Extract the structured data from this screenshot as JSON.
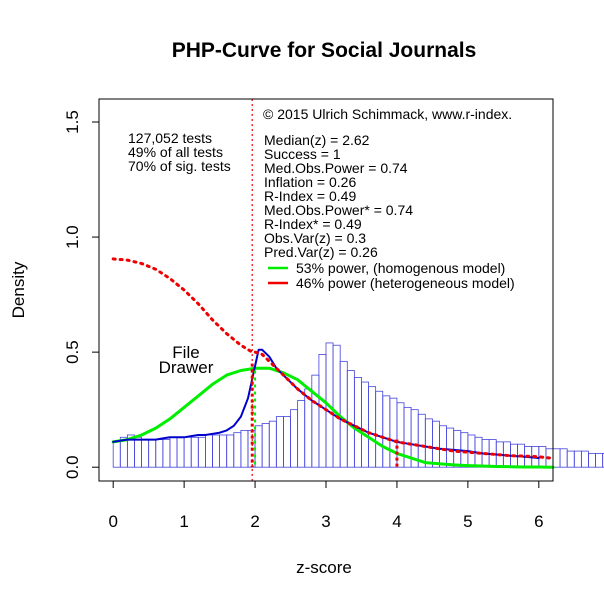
{
  "chart_data": {
    "type": "histogram-with-curves",
    "title": "PHP-Curve for Social Journals",
    "xlabel": "z-score",
    "ylabel": "Density",
    "xlim": [
      -0.2,
      6.2
    ],
    "ylim": [
      -0.06,
      1.6
    ],
    "x_ticks": [
      0,
      1,
      2,
      3,
      4,
      5,
      6
    ],
    "y_ticks": [
      0.0,
      0.5,
      1.0,
      1.5
    ],
    "x_tick_labels": [
      "0",
      "1",
      "2",
      "3",
      "4",
      "5",
      "6"
    ],
    "y_tick_labels": [
      "0.0",
      "0.5",
      "1.0",
      "1.5"
    ],
    "copyright": "© 2015 Ulrich Schimmack, www.r-index.",
    "left_annotations": [
      "127,052 tests",
      "49% of all tests",
      "70% of sig. tests"
    ],
    "stats_annotations": [
      "Median(z) = 2.62",
      "Success = 1",
      "Med.Obs.Power = 0.74",
      "Inflation = 0.26",
      "R-Index = 0.49",
      "Med.Obs.Power* = 0.74",
      "R-Index* = 0.49",
      "Obs.Var(z) = 0.3",
      "Pred.Var(z) = 0.26"
    ],
    "file_drawer_label": [
      "File",
      "Drawer"
    ],
    "significance_threshold": 1.96,
    "power_cutoff": 4,
    "histogram": {
      "bin_width": 0.1,
      "bin_start": 0,
      "color": "#4444dd",
      "values": [
        0.11,
        0.13,
        0.14,
        0.13,
        0.12,
        0.12,
        0.12,
        0.12,
        0.13,
        0.13,
        0.13,
        0.13,
        0.13,
        0.14,
        0.14,
        0.14,
        0.14,
        0.15,
        0.16,
        0.16,
        0.18,
        0.19,
        0.2,
        0.22,
        0.22,
        0.25,
        0.29,
        0.34,
        0.4,
        0.49,
        0.54,
        0.53,
        0.46,
        0.42,
        0.39,
        0.37,
        0.35,
        0.33,
        0.31,
        0.3,
        0.28,
        0.26,
        0.25,
        0.23,
        0.21,
        0.2,
        0.18,
        0.17,
        0.16,
        0.15,
        0.14,
        0.13,
        0.12,
        0.12,
        0.11,
        0.11,
        0.1,
        0.1,
        0.09,
        0.09,
        0.09,
        0.08,
        0.08,
        0.08,
        0.07,
        0.07,
        0.07,
        0.06,
        0.06,
        0.06,
        0.05,
        0.05,
        0.05,
        0.05,
        0.04,
        0.04,
        0.04,
        0.04,
        0.03,
        0.03
      ]
    },
    "series": [
      {
        "name": "53% power, (homogenous model)",
        "color": "#00ee00",
        "style": "solid",
        "x": [
          0.0,
          0.2,
          0.4,
          0.6,
          0.8,
          1.0,
          1.2,
          1.4,
          1.6,
          1.8,
          2.0,
          2.2,
          2.4,
          2.6,
          2.8,
          3.0,
          3.2,
          3.4,
          3.6,
          3.8,
          4.0,
          4.2,
          4.4,
          4.6,
          4.8,
          5.0,
          5.2,
          5.4,
          5.6,
          5.8,
          6.0,
          6.2
        ],
        "y": [
          0.11,
          0.12,
          0.14,
          0.17,
          0.21,
          0.26,
          0.31,
          0.36,
          0.4,
          0.42,
          0.43,
          0.43,
          0.41,
          0.38,
          0.33,
          0.28,
          0.22,
          0.17,
          0.13,
          0.09,
          0.06,
          0.04,
          0.02,
          0.015,
          0.01,
          0.007,
          0.005,
          0.003,
          0.002,
          0.001,
          0.001,
          0.0
        ]
      },
      {
        "name": "46% power (heterogeneous model)",
        "color": "#ee0000",
        "style": "dotted",
        "x": [
          0.0,
          0.2,
          0.4,
          0.6,
          0.8,
          1.0,
          1.2,
          1.4,
          1.6,
          1.8,
          1.96,
          2.0,
          2.1,
          2.2,
          2.4,
          2.6,
          2.8,
          3.0,
          3.2,
          3.4,
          3.6,
          3.8,
          4.0,
          4.2,
          4.4,
          4.6,
          4.8,
          5.0,
          5.2,
          5.4,
          5.6,
          5.8,
          6.0,
          6.15
        ],
        "y": [
          0.905,
          0.9,
          0.885,
          0.86,
          0.82,
          0.77,
          0.71,
          0.64,
          0.58,
          0.53,
          0.5,
          0.5,
          0.49,
          0.46,
          0.4,
          0.34,
          0.29,
          0.25,
          0.21,
          0.18,
          0.15,
          0.13,
          0.11,
          0.1,
          0.09,
          0.08,
          0.07,
          0.065,
          0.06,
          0.055,
          0.05,
          0.048,
          0.045,
          0.04
        ]
      },
      {
        "name": "kernel density",
        "color": "#0000cc",
        "style": "solid",
        "x": [
          0.0,
          0.1,
          0.2,
          0.3,
          0.4,
          0.5,
          0.6,
          0.7,
          0.8,
          0.9,
          1.0,
          1.1,
          1.2,
          1.3,
          1.4,
          1.5,
          1.6,
          1.7,
          1.8,
          1.9,
          2.0,
          2.05,
          2.1,
          2.2,
          2.3,
          2.4,
          2.6,
          2.8,
          3.0,
          3.2,
          3.4,
          3.6,
          3.8,
          4.0,
          4.2,
          4.4,
          4.6,
          4.8,
          5.0,
          5.2,
          5.4,
          5.6,
          5.8,
          6.0
        ],
        "y": [
          0.11,
          0.115,
          0.12,
          0.12,
          0.12,
          0.12,
          0.12,
          0.125,
          0.13,
          0.13,
          0.13,
          0.135,
          0.14,
          0.14,
          0.145,
          0.15,
          0.16,
          0.18,
          0.22,
          0.3,
          0.44,
          0.51,
          0.51,
          0.48,
          0.43,
          0.4,
          0.34,
          0.29,
          0.25,
          0.21,
          0.18,
          0.15,
          0.13,
          0.11,
          0.1,
          0.09,
          0.08,
          0.075,
          0.07,
          0.06,
          0.055,
          0.05,
          0.045,
          0.04
        ]
      }
    ]
  }
}
